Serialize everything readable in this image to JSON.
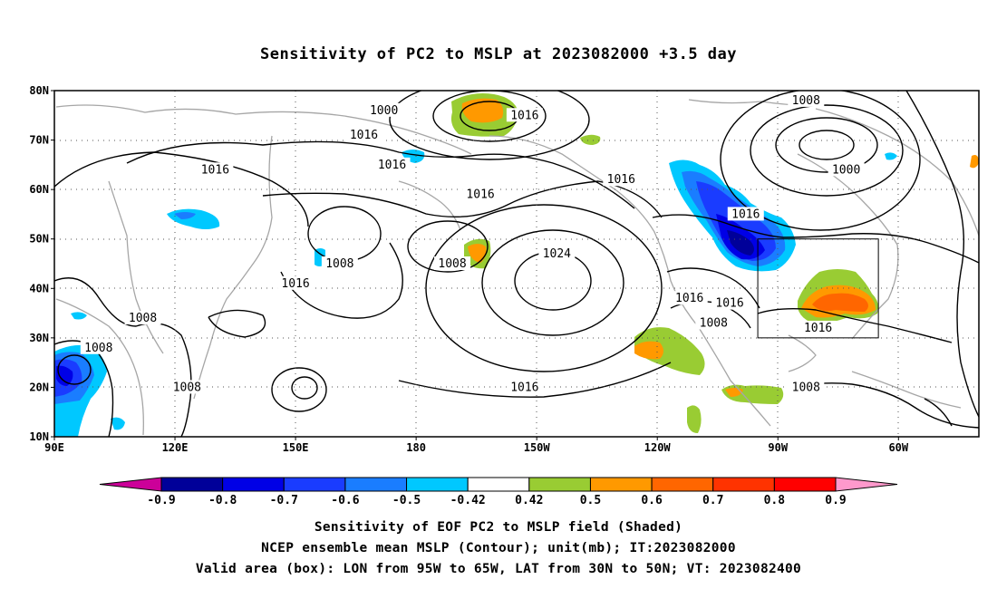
{
  "title": "Sensitivity of PC2 to MSLP at 2023082000 +3.5 day",
  "map": {
    "lat_labels": [
      "80N",
      "70N",
      "60N",
      "50N",
      "40N",
      "30N",
      "20N",
      "10N"
    ],
    "lon_labels": [
      "90E",
      "120E",
      "150E",
      "180",
      "150W",
      "120W",
      "90W",
      "60W"
    ],
    "contour_labels": [
      {
        "text": "1000",
        "lon": 172,
        "lat": 76
      },
      {
        "text": "1016",
        "lon": 167,
        "lat": 71
      },
      {
        "text": "1016",
        "lon": 174,
        "lat": 65
      },
      {
        "text": "1016",
        "lon": 207,
        "lat": 75
      },
      {
        "text": "1008",
        "lon": 277,
        "lat": 78
      },
      {
        "text": "1000",
        "lon": 287,
        "lat": 64
      },
      {
        "text": "1016",
        "lon": 130,
        "lat": 64
      },
      {
        "text": "1016",
        "lon": 196,
        "lat": 59
      },
      {
        "text": "1016",
        "lon": 231,
        "lat": 62
      },
      {
        "text": "1016",
        "lon": 262,
        "lat": 55
      },
      {
        "text": "1008",
        "lon": 161,
        "lat": 45
      },
      {
        "text": "1008",
        "lon": 189,
        "lat": 45
      },
      {
        "text": "1024",
        "lon": 215,
        "lat": 47
      },
      {
        "text": "1016",
        "lon": 150,
        "lat": 41
      },
      {
        "text": "1016",
        "lon": 248,
        "lat": 38
      },
      {
        "text": "1016",
        "lon": 258,
        "lat": 37
      },
      {
        "text": "1016",
        "lon": 280,
        "lat": 32
      },
      {
        "text": "1008",
        "lon": 112,
        "lat": 34
      },
      {
        "text": "1008",
        "lon": 254,
        "lat": 33
      },
      {
        "text": "1008",
        "lon": 101,
        "lat": 28
      },
      {
        "text": "1008",
        "lon": 123,
        "lat": 20
      },
      {
        "text": "1016",
        "lon": 207,
        "lat": 20
      },
      {
        "text": "1008",
        "lon": 277,
        "lat": 20
      }
    ],
    "valid_box": {
      "lon_west": 265,
      "lon_east": 295,
      "lat_south": 30,
      "lat_north": 50
    }
  },
  "colorbar": {
    "labels": [
      "-0.9",
      "-0.8",
      "-0.7",
      "-0.6",
      "-0.5",
      "-0.42",
      "0.42",
      "0.5",
      "0.6",
      "0.7",
      "0.8",
      "0.9"
    ],
    "colors": [
      "#000099",
      "#0000e6",
      "#1a3cff",
      "#1a7dff",
      "#00c8ff",
      "#ffffff",
      "#99cc33",
      "#ff9900",
      "#ff6600",
      "#ff3300",
      "#ff0000"
    ],
    "low_end_color": "#cc0099",
    "high_end_color": "#ff99cc"
  },
  "captions": {
    "line1": "Sensitivity of EOF PC2 to MSLP field (Shaded)",
    "line2": "NCEP ensemble mean MSLP (Contour); unit(mb); IT:2023082000",
    "line3": "Valid area (box): LON from 95W to 65W, LAT from 30N to 50N; VT: 2023082400"
  }
}
